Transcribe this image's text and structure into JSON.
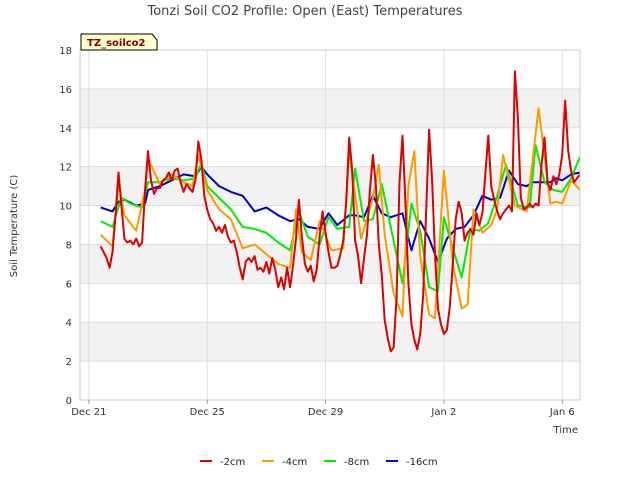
{
  "chart_data": {
    "type": "line",
    "title": "Tonzi Soil CO2 Profile: Open (East) Temperatures",
    "xlabel": "Time",
    "ylabel": "Soil Temperature (C)",
    "tag": "TZ_soilco2",
    "ylim": [
      0,
      18
    ],
    "yticks": [
      0,
      2,
      4,
      6,
      8,
      10,
      12,
      14,
      16,
      18
    ],
    "xlim": [
      -0.3,
      16.6
    ],
    "xticks": [
      {
        "value": 0,
        "label": "Dec 21"
      },
      {
        "value": 4,
        "label": "Dec 25"
      },
      {
        "value": 8,
        "label": "Dec 29"
      },
      {
        "value": 12,
        "label": "Jan 2"
      },
      {
        "value": 16,
        "label": "Jan 6"
      }
    ],
    "grid": true,
    "legend_position": "bottom",
    "x_unit": "days since Dec 21",
    "series": [
      {
        "name": "-2cm",
        "color": "#dd0000",
        "x": [
          0.4,
          0.5,
          0.6,
          0.7,
          0.8,
          0.9,
          1.0,
          1.1,
          1.2,
          1.3,
          1.4,
          1.5,
          1.6,
          1.7,
          1.8,
          1.9,
          2.0,
          2.1,
          2.2,
          2.3,
          2.4,
          2.5,
          2.6,
          2.7,
          2.8,
          2.9,
          3.0,
          3.1,
          3.2,
          3.3,
          3.4,
          3.5,
          3.6,
          3.7,
          3.8,
          3.9,
          4.0,
          4.1,
          4.2,
          4.3,
          4.4,
          4.5,
          4.6,
          4.7,
          4.8,
          4.9,
          5.0,
          5.1,
          5.2,
          5.3,
          5.4,
          5.5,
          5.6,
          5.7,
          5.8,
          5.9,
          6.0,
          6.1,
          6.2,
          6.3,
          6.4,
          6.5,
          6.6,
          6.7,
          6.8,
          6.9,
          7.0,
          7.1,
          7.2,
          7.3,
          7.4,
          7.5,
          7.6,
          7.7,
          7.8,
          7.9,
          8.0,
          8.1,
          8.2,
          8.3,
          8.4,
          8.5,
          8.6,
          8.7,
          8.8,
          8.9,
          9.0,
          9.1,
          9.2,
          9.3,
          9.4,
          9.5,
          9.6,
          9.7,
          9.8,
          9.9,
          10.0,
          10.1,
          10.2,
          10.3,
          10.4,
          10.5,
          10.6,
          10.7,
          10.8,
          10.9,
          11.0,
          11.1,
          11.2,
          11.3,
          11.4,
          11.5,
          11.6,
          11.7,
          11.8,
          11.9,
          12.0,
          12.1,
          12.2,
          12.3,
          12.4,
          12.5,
          12.6,
          12.7,
          12.8,
          12.9,
          13.0,
          13.1,
          13.2,
          13.3,
          13.4,
          13.5,
          13.6,
          13.7,
          13.8,
          13.9,
          14.0,
          14.1,
          14.2,
          14.3,
          14.4,
          14.5,
          14.6,
          14.7,
          14.8,
          14.9,
          15.0,
          15.1,
          15.2,
          15.3,
          15.4,
          15.5,
          15.6,
          15.7,
          15.8,
          15.9,
          16.0,
          16.1,
          16.2,
          16.3,
          16.4,
          16.5,
          16.6,
          16.7,
          16.8,
          16.9,
          17.0,
          17.1,
          17.2
        ],
        "y": [
          7.9,
          7.6,
          7.3,
          6.8,
          7.6,
          9.5,
          11.7,
          10.0,
          8.3,
          8.1,
          8.2,
          8.0,
          8.3,
          7.9,
          8.1,
          10.8,
          12.8,
          11.3,
          10.6,
          10.9,
          10.9,
          11.3,
          11.4,
          11.7,
          11.3,
          11.8,
          11.9,
          11.2,
          10.7,
          11.1,
          10.9,
          10.7,
          11.3,
          13.3,
          12.4,
          10.5,
          9.8,
          9.3,
          9.1,
          8.7,
          8.9,
          8.6,
          9.0,
          8.4,
          8.1,
          8.2,
          7.6,
          6.8,
          6.2,
          7.1,
          7.3,
          7.1,
          7.4,
          6.7,
          6.8,
          6.6,
          7.1,
          6.5,
          7.3,
          6.7,
          5.8,
          6.3,
          5.7,
          6.8,
          5.8,
          6.9,
          8.3,
          10.3,
          8.4,
          7.0,
          6.6,
          6.9,
          6.1,
          6.7,
          8.4,
          9.7,
          8.6,
          7.6,
          6.8,
          6.8,
          6.9,
          7.5,
          8.2,
          10.3,
          13.5,
          11.8,
          8.2,
          7.4,
          6.0,
          7.3,
          8.5,
          10.8,
          12.6,
          11.0,
          8.0,
          6.4,
          4.1,
          3.2,
          2.5,
          2.7,
          5.3,
          11.2,
          13.6,
          10.2,
          6.0,
          3.9,
          3.1,
          2.6,
          3.4,
          5.4,
          9.8,
          13.9,
          11.3,
          7.5,
          4.7,
          3.9,
          3.4,
          3.6,
          4.8,
          7.0,
          9.3,
          10.2,
          9.6,
          8.2,
          8.6,
          8.8,
          8.5,
          9.6,
          9.0,
          9.6,
          11.6,
          13.6,
          11.0,
          10.3,
          9.7,
          9.3,
          9.6,
          9.8,
          10.0,
          9.7,
          16.9,
          14.5,
          10.4,
          9.8,
          9.9,
          10.1,
          9.9,
          10.1,
          10.0,
          12.1,
          13.5,
          11.2,
          10.8,
          11.5,
          11.1,
          11.6,
          12.6,
          15.4,
          12.8,
          11.8,
          11.2,
          11.4,
          11.6,
          11.8,
          11.6,
          11.2,
          11.0,
          11.1,
          11.2
        ],
        "count_note": "series truncated to plotted range"
      },
      {
        "name": "-4cm",
        "color": "#ff9900",
        "x": [
          0.4,
          0.8,
          1.0,
          1.2,
          1.6,
          1.9,
          2.0,
          2.4,
          2.8,
          3.2,
          3.5,
          3.7,
          4.0,
          4.4,
          4.8,
          5.2,
          5.6,
          6.0,
          6.4,
          6.8,
          7.0,
          7.2,
          7.5,
          7.8,
          8.2,
          8.6,
          8.8,
          9.2,
          9.6,
          9.8,
          10.0,
          10.3,
          10.6,
          10.8,
          11.0,
          11.2,
          11.5,
          11.7,
          12.0,
          12.3,
          12.6,
          12.8,
          13.0,
          13.3,
          13.6,
          13.8,
          14.0,
          14.4,
          14.8,
          15.2,
          15.6,
          15.8,
          16.0,
          16.3,
          16.6,
          16.9,
          17.0,
          17.2
        ],
        "y": [
          8.5,
          7.9,
          11.2,
          9.5,
          8.7,
          10.8,
          12.4,
          11.1,
          11.6,
          11.2,
          11.0,
          12.6,
          10.8,
          9.8,
          9.3,
          7.8,
          8.0,
          7.5,
          7.0,
          6.8,
          9.8,
          7.6,
          7.2,
          9.2,
          7.7,
          7.8,
          12.8,
          8.3,
          10.4,
          12.1,
          8.5,
          5.5,
          4.3,
          11.0,
          12.8,
          7.4,
          4.4,
          4.2,
          11.8,
          7.0,
          4.7,
          4.9,
          9.8,
          8.6,
          9.0,
          9.8,
          12.6,
          10.0,
          9.7,
          15.0,
          10.1,
          10.2,
          10.1,
          11.3,
          10.8,
          14.2,
          11.6,
          11.5
        ]
      },
      {
        "name": "-8cm",
        "color": "#00ee00",
        "x": [
          0.4,
          0.8,
          1.1,
          1.4,
          1.8,
          2.0,
          2.4,
          2.8,
          3.2,
          3.6,
          3.8,
          4.0,
          4.4,
          4.8,
          5.2,
          5.6,
          6.0,
          6.4,
          6.8,
          7.1,
          7.4,
          7.8,
          8.1,
          8.4,
          8.8,
          9.0,
          9.3,
          9.6,
          9.9,
          10.3,
          10.6,
          10.9,
          11.2,
          11.5,
          11.8,
          12.0,
          12.3,
          12.6,
          12.9,
          13.2,
          13.5,
          13.8,
          14.1,
          14.5,
          14.9,
          15.1,
          15.4,
          15.7,
          16.0,
          16.3,
          16.6,
          16.9,
          17.2
        ],
        "y": [
          9.2,
          8.9,
          10.4,
          10.1,
          9.9,
          11.2,
          11.2,
          11.4,
          11.3,
          11.4,
          12.2,
          11.0,
          10.4,
          9.8,
          8.9,
          8.8,
          8.6,
          8.1,
          7.7,
          9.7,
          8.4,
          8.0,
          9.4,
          8.8,
          8.9,
          11.9,
          9.2,
          9.3,
          11.1,
          8.2,
          6.0,
          10.1,
          8.7,
          5.8,
          5.6,
          9.4,
          7.8,
          6.3,
          8.8,
          8.7,
          9.1,
          10.5,
          12.1,
          10.0,
          9.9,
          13.1,
          11.2,
          10.8,
          10.7,
          11.4,
          12.5,
          11.9,
          11.6
        ]
      },
      {
        "name": "-16cm",
        "color": "#0000cc",
        "x": [
          0.4,
          0.8,
          1.0,
          1.2,
          1.6,
          1.9,
          2.0,
          2.4,
          2.8,
          3.2,
          3.6,
          3.8,
          4.0,
          4.4,
          4.8,
          5.2,
          5.6,
          6.0,
          6.4,
          6.8,
          7.1,
          7.4,
          7.8,
          8.1,
          8.4,
          8.8,
          9.0,
          9.3,
          9.6,
          9.9,
          10.2,
          10.6,
          10.9,
          11.2,
          11.5,
          11.8,
          12.1,
          12.4,
          12.7,
          13.0,
          13.3,
          13.6,
          13.9,
          14.2,
          14.5,
          14.8,
          15.0,
          15.3,
          15.6,
          15.8,
          16.0,
          16.3,
          16.6,
          16.9,
          17.2
        ],
        "y": [
          9.9,
          9.7,
          10.2,
          10.3,
          10.0,
          10.1,
          10.8,
          11.0,
          11.3,
          11.6,
          11.5,
          12.0,
          11.6,
          11.0,
          10.7,
          10.5,
          9.7,
          9.9,
          9.5,
          9.2,
          9.3,
          8.9,
          8.8,
          9.6,
          9.0,
          9.5,
          9.5,
          9.4,
          10.5,
          9.6,
          9.4,
          9.6,
          7.7,
          9.2,
          8.3,
          7.1,
          8.3,
          8.8,
          8.9,
          9.5,
          10.5,
          10.3,
          10.4,
          11.8,
          11.1,
          11.0,
          11.2,
          11.2,
          11.2,
          11.4,
          11.3,
          11.6,
          11.7,
          11.5,
          11.5
        ]
      }
    ]
  }
}
